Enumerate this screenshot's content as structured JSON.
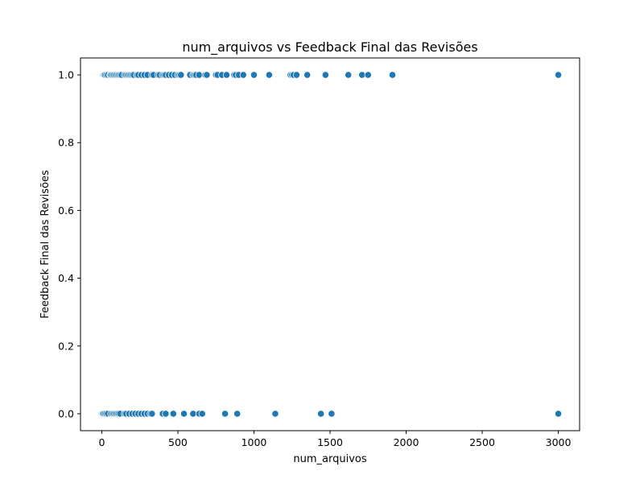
{
  "chart_data": {
    "type": "scatter",
    "title": "num_arquivos vs Feedback Final das Revisões",
    "xlabel": "num_arquivos",
    "ylabel": "Feedback Final das Revisões",
    "xlim": [
      -140,
      3140
    ],
    "ylim": [
      -0.05,
      1.05
    ],
    "xticks": [
      0,
      500,
      1000,
      1500,
      2000,
      2500,
      3000
    ],
    "xtick_labels": [
      "0",
      "500",
      "1000",
      "1500",
      "2000",
      "2500",
      "3000"
    ],
    "yticks": [
      0.0,
      0.2,
      0.4,
      0.6,
      0.8,
      1.0
    ],
    "ytick_labels": [
      "0.0",
      "0.2",
      "0.4",
      "0.6",
      "0.8",
      "1.0"
    ],
    "grid": false,
    "marker_color": "#1f77b4",
    "series": [
      {
        "x": [
          0,
          3,
          6,
          10,
          15,
          20,
          30,
          40,
          55,
          60,
          70,
          80,
          90,
          100,
          110,
          120,
          130,
          150,
          160,
          170,
          180,
          190,
          200,
          210,
          230,
          240,
          260,
          280,
          300,
          330,
          340,
          370,
          380,
          400,
          410,
          420,
          440,
          460,
          480,
          500,
          510,
          520,
          580,
          600,
          610,
          620,
          640,
          680,
          690,
          750,
          760,
          790,
          820,
          870,
          880,
          900,
          930,
          1000,
          1100,
          1240,
          1250,
          1260,
          1280,
          1350,
          1470,
          1620,
          1710,
          1750,
          1910,
          3000
        ],
        "y": [
          1,
          1,
          1,
          1,
          1,
          1,
          1,
          1,
          1,
          1,
          1,
          1,
          1,
          1,
          1,
          1,
          1,
          1,
          1,
          1,
          1,
          1,
          1,
          1,
          1,
          1,
          1,
          1,
          1,
          1,
          1,
          1,
          1,
          1,
          1,
          1,
          1,
          1,
          1,
          1,
          1,
          1,
          1,
          1,
          1,
          1,
          1,
          1,
          1,
          1,
          1,
          1,
          1,
          1,
          1,
          1,
          1,
          1,
          1,
          1,
          1,
          1,
          1,
          1,
          1,
          1,
          1,
          1,
          1,
          1
        ]
      },
      {
        "x": [
          0,
          5,
          10,
          20,
          30,
          40,
          60,
          70,
          80,
          90,
          100,
          110,
          120,
          150,
          160,
          180,
          200,
          220,
          240,
          260,
          280,
          300,
          320,
          330,
          400,
          420,
          470,
          540,
          600,
          640,
          660,
          810,
          890,
          1140,
          1440,
          1510,
          3000
        ],
        "y": [
          0,
          0,
          0,
          0,
          0,
          0,
          0,
          0,
          0,
          0,
          0,
          0,
          0,
          0,
          0,
          0,
          0,
          0,
          0,
          0,
          0,
          0,
          0,
          0,
          0,
          0,
          0,
          0,
          0,
          0,
          0,
          0,
          0,
          0,
          0,
          0,
          0
        ]
      }
    ]
  }
}
